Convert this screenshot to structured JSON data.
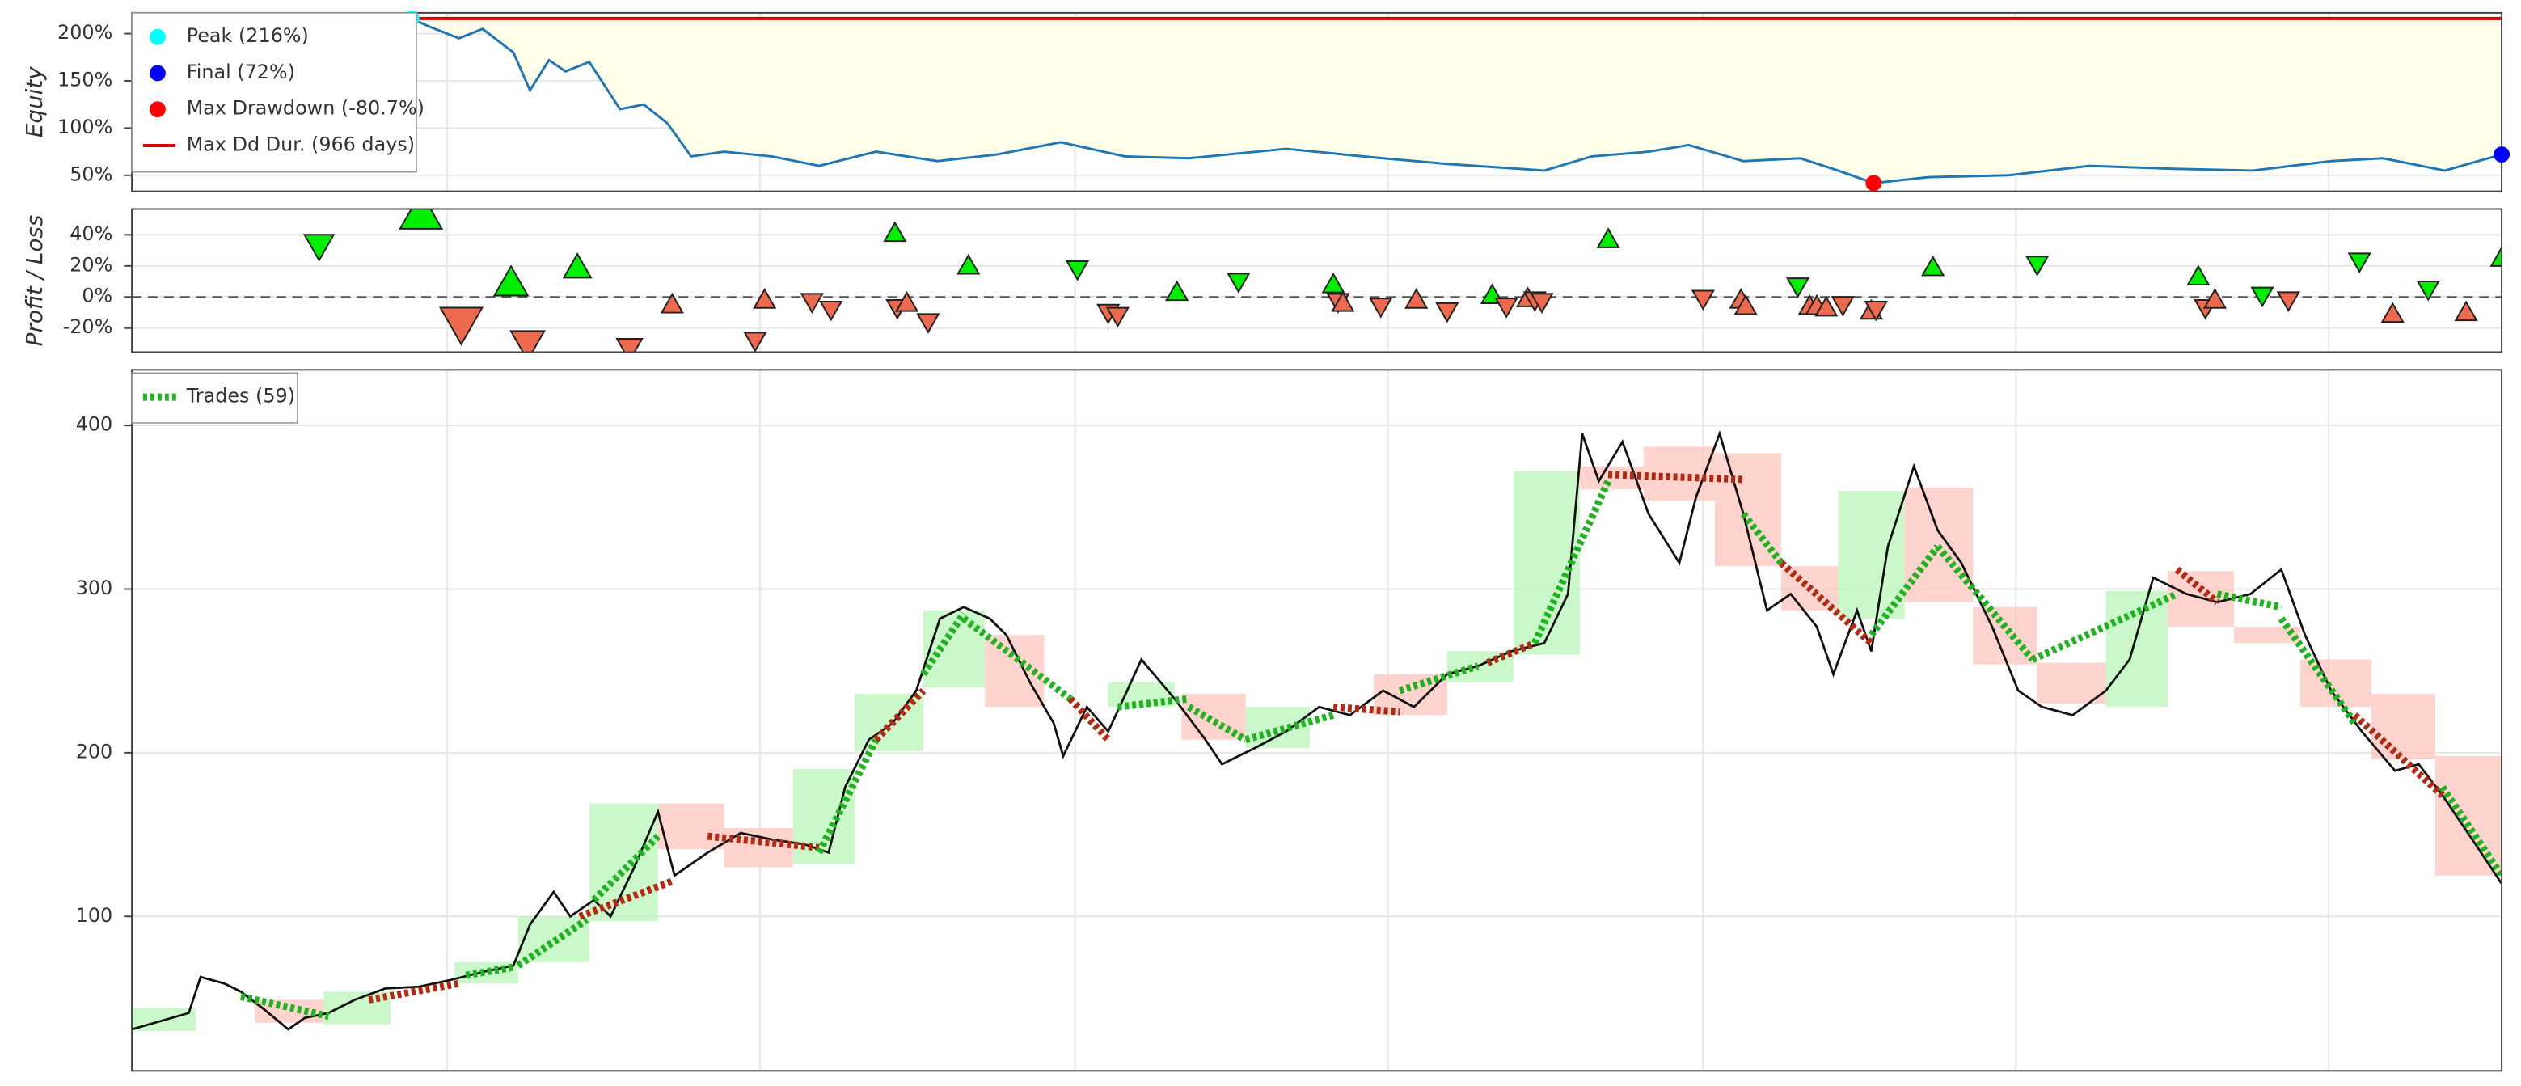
{
  "chart_data": [
    {
      "type": "area",
      "ylabel": "Equity",
      "x": [
        0,
        20,
        40,
        60,
        80,
        100,
        118,
        125,
        138,
        148,
        161,
        168,
        176,
        183,
        193,
        206,
        216,
        226,
        236,
        250,
        270,
        290,
        314,
        340,
        365,
        392,
        419,
        446,
        487,
        528,
        555,
        596,
        616,
        640,
        657,
        680,
        704,
        720,
        735,
        758,
        792,
        826,
        860,
        895,
        928,
        950,
        976,
        1000
      ],
      "values": [
        100,
        112,
        128,
        146,
        170,
        195,
        216,
        208,
        195,
        205,
        180,
        140,
        172,
        160,
        170,
        120,
        125,
        105,
        70,
        75,
        70,
        60,
        75,
        65,
        72,
        85,
        70,
        68,
        78,
        68,
        62,
        55,
        70,
        75,
        82,
        65,
        68,
        55,
        41.7,
        48,
        50,
        60,
        57,
        55,
        65,
        68,
        55,
        72
      ],
      "color": "#1f77b4",
      "fill": "#ffffea",
      "xlim": [
        0,
        1000
      ],
      "xticks": [
        133,
        265,
        398,
        530,
        663,
        795,
        927
      ],
      "ylim": [
        33,
        222
      ],
      "yticks": [
        {
          "value": 50,
          "label": "50%"
        },
        {
          "value": 100,
          "label": "100%"
        },
        {
          "value": 150,
          "label": "150%"
        },
        {
          "value": 200,
          "label": "200%"
        }
      ],
      "grid": true,
      "legend": "top-left",
      "points": [
        {
          "name": "Peak (216%)",
          "color": "#00ffff",
          "x": 118,
          "value": 216
        },
        {
          "name": "Final (72%)",
          "color": "#0000ff",
          "x": 1000,
          "value": 72
        },
        {
          "name": "Max Drawdown (-80.7%)",
          "color": "#ff0000",
          "x": 735,
          "value": 41.7
        }
      ],
      "dd_line": {
        "name": "Max Dd Dur. (966 days)",
        "color": "#dd0000",
        "x": [
          118,
          1000
        ],
        "value": 216
      }
    },
    {
      "type": "scatter",
      "ylabel": "Profit / Loss",
      "x": [
        79,
        122,
        139,
        160,
        167,
        188,
        210,
        228,
        263,
        267,
        287,
        295,
        322,
        323,
        327,
        336,
        353,
        399,
        412,
        416,
        441,
        467,
        507,
        509,
        511,
        527,
        542,
        555,
        574,
        580,
        589,
        592,
        595,
        623,
        663,
        679,
        681,
        703,
        708,
        711,
        715,
        722,
        734,
        736,
        760,
        804,
        872,
        875,
        879,
        899,
        910,
        940,
        954,
        969,
        985,
        1000
      ],
      "values": [
        33,
        54,
        -17,
        9,
        -30,
        19,
        -33,
        -5,
        -28,
        -2,
        -3,
        -8,
        41,
        -7,
        -4,
        -16,
        20,
        18,
        -10,
        -12,
        3,
        10,
        8,
        -3,
        -4,
        -6,
        -2,
        -9,
        1,
        -6,
        -1,
        -2,
        -3,
        37,
        -1,
        -2,
        -6,
        7,
        -6,
        -6,
        -7,
        -5,
        -9,
        -8,
        19,
        21,
        13,
        -7,
        -2,
        1,
        -2,
        23,
        -11,
        5,
        -10,
        25
      ],
      "sizes": [
        1.4,
        2,
        2,
        1.6,
        1.6,
        1.3,
        1.2,
        1,
        1,
        1,
        1,
        1,
        1,
        1,
        1,
        1,
        1,
        1,
        1,
        1,
        1,
        1,
        1,
        1,
        1,
        1,
        1,
        1,
        1,
        1,
        1,
        1,
        1,
        1,
        1,
        1,
        1,
        1,
        1,
        1,
        1,
        1,
        1,
        1,
        1,
        1,
        1,
        1,
        1,
        1,
        1,
        1,
        1,
        1,
        1,
        1
      ],
      "markers": [
        "down",
        "up",
        "down",
        "up",
        "down",
        "up",
        "down",
        "up",
        "down",
        "up",
        "down",
        "down",
        "up",
        "down",
        "up",
        "down",
        "up",
        "down",
        "down",
        "down",
        "up",
        "down",
        "up",
        "down",
        "up",
        "down",
        "up",
        "down",
        "up",
        "down",
        "up",
        "down",
        "down",
        "up",
        "down",
        "up",
        "up",
        "down",
        "up",
        "up",
        "up",
        "down",
        "up",
        "down",
        "up",
        "down",
        "up",
        "down",
        "up",
        "down",
        "down",
        "down",
        "up",
        "down",
        "up",
        "up"
      ],
      "profit_color": "#00ee00",
      "loss_color": "#ee6a4f",
      "xlim": [
        0,
        1000
      ],
      "xticks": [
        133,
        265,
        398,
        530,
        663,
        795,
        927
      ],
      "ylim": [
        -35.5,
        56.6
      ],
      "yticks": [
        {
          "value": 40,
          "label": "40%"
        },
        {
          "value": 20,
          "label": "20%"
        },
        {
          "value": 0,
          "label": "0%"
        },
        {
          "value": -20,
          "label": "-20%"
        }
      ],
      "grid": true,
      "zero_line": true
    },
    {
      "type": "line",
      "x": [
        0,
        12,
        24,
        29,
        39,
        46,
        56,
        66,
        73,
        83,
        94,
        107,
        121,
        134,
        148,
        161,
        168,
        178,
        185,
        195,
        202,
        212,
        222,
        229,
        243,
        257,
        270,
        284,
        294,
        301,
        311,
        321,
        331,
        341,
        351,
        362,
        369,
        379,
        389,
        393,
        403,
        412,
        420,
        426,
        440,
        453,
        460,
        474,
        487,
        501,
        514,
        528,
        541,
        555,
        568,
        582,
        596,
        606,
        612,
        619,
        629,
        640,
        653,
        660,
        670,
        680,
        690,
        700,
        711,
        718,
        728,
        734,
        741,
        752,
        762,
        772,
        785,
        796,
        806,
        819,
        833,
        843,
        853,
        867,
        880,
        894,
        907,
        917,
        928,
        941,
        955,
        965,
        975,
        989,
        1000
      ],
      "values": [
        31,
        36,
        41,
        63,
        59,
        54,
        43,
        31,
        38,
        41,
        49,
        56,
        57,
        61,
        66,
        70,
        95,
        115,
        100,
        110,
        100,
        130,
        164,
        125,
        139,
        151,
        147,
        144,
        139,
        179,
        208,
        218,
        238,
        282,
        289,
        282,
        272,
        243,
        218,
        198,
        228,
        213,
        238,
        257,
        233,
        208,
        193,
        203,
        213,
        228,
        223,
        238,
        228,
        248,
        253,
        262,
        267,
        297,
        395,
        366,
        390,
        346,
        316,
        356,
        395,
        346,
        287,
        297,
        277,
        248,
        287,
        262,
        326,
        375,
        336,
        316,
        277,
        238,
        228,
        223,
        238,
        257,
        307,
        297,
        292,
        297,
        312,
        272,
        238,
        213,
        189,
        193,
        174,
        144,
        120
      ],
      "color": "#111111",
      "boxes": {
        "x0": [
          0,
          52,
          81,
          136,
          163,
          193,
          222,
          250,
          279,
          305,
          334,
          360,
          412,
          443,
          470,
          524,
          555,
          583,
          611,
          638,
          668,
          696,
          720,
          748,
          777,
          804,
          833,
          859,
          887,
          915,
          945,
          972
        ],
        "x1": [
          27,
          81,
          109,
          163,
          193,
          222,
          250,
          279,
          305,
          334,
          360,
          385,
          440,
          470,
          497,
          555,
          583,
          611,
          638,
          668,
          696,
          720,
          748,
          777,
          804,
          833,
          859,
          887,
          915,
          945,
          972,
          1000
        ],
        "open": [
          30,
          49,
          34,
          59,
          72,
          97,
          169,
          154,
          132,
          201,
          240,
          272,
          228,
          236,
          203,
          248,
          243,
          260,
          375,
          387,
          383,
          314,
          282,
          362,
          289,
          255,
          228,
          311,
          277,
          257,
          236,
          198
        ],
        "close": [
          44,
          35,
          54,
          72,
          100,
          169,
          141,
          130,
          190,
          236,
          287,
          228,
          243,
          208,
          228,
          223,
          262,
          372,
          361,
          354,
          314,
          287,
          360,
          292,
          254,
          230,
          299,
          277,
          267,
          228,
          196,
          125
        ],
        "up_color": "#b8f5b8",
        "down_color": "#ffc4bd"
      },
      "trades": {
        "name": "Trades (59)",
        "legend_color": "#1fb31f",
        "entry_x": [
          46,
          100,
          141,
          163,
          189,
          195,
          243,
          290,
          314,
          334,
          351,
          396,
          416,
          446,
          470,
          507,
          535,
          572,
          592,
          623,
          680,
          696,
          734,
          762,
          802,
          863,
          880,
          907,
          938,
          975
        ],
        "entry_price": [
          51,
          49,
          64,
          70,
          100,
          110,
          149,
          139,
          208,
          248,
          282,
          233,
          228,
          228,
          208,
          228,
          238,
          255,
          267,
          370,
          346,
          316,
          272,
          326,
          257,
          312,
          297,
          282,
          223,
          179
        ],
        "exit_x": [
          83,
          138,
          161,
          192,
          229,
          222,
          290,
          314,
          334,
          351,
          396,
          412,
          446,
          470,
          507,
          535,
          568,
          592,
          623,
          680,
          696,
          734,
          762,
          802,
          863,
          880,
          907,
          938,
          975,
          1000
        ],
        "exit_price": [
          39,
          59,
          69,
          98,
          122,
          149,
          142,
          208,
          238,
          285,
          233,
          208,
          233,
          208,
          223,
          225,
          253,
          267,
          366,
          367,
          316,
          267,
          326,
          257,
          297,
          292,
          289,
          218,
          174,
          125
        ],
        "colors": [
          "#1fb31f",
          "#b32a10",
          "#1fb31f",
          "#1fb31f",
          "#b32a10",
          "#1fb31f",
          "#b32a10",
          "#1fb31f",
          "#b32a10",
          "#1fb31f",
          "#1fb31f",
          "#b32a10",
          "#1fb31f",
          "#1fb31f",
          "#1fb31f",
          "#b32a10",
          "#1fb31f",
          "#b32a10",
          "#1fb31f",
          "#b32a10",
          "#1fb31f",
          "#b32a10",
          "#1fb31f",
          "#1fb31f",
          "#1fb31f",
          "#b32a10",
          "#1fb31f",
          "#1fb31f",
          "#b32a10",
          "#1fb31f"
        ]
      },
      "xlim": [
        0,
        1000
      ],
      "xticks": [
        133,
        265,
        398,
        530,
        663,
        795,
        927
      ],
      "ylim": [
        5.6,
        434
      ],
      "yticks": [
        100,
        200,
        300,
        400
      ],
      "grid": true,
      "legend": "top-left"
    }
  ]
}
